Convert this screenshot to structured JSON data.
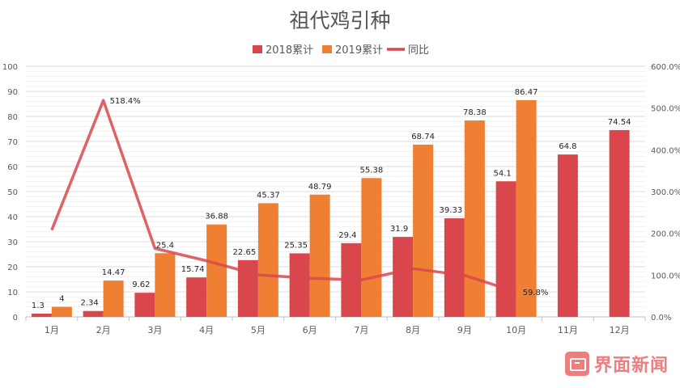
{
  "chart_data": {
    "type": "bar",
    "title": "祖代鸡引种",
    "categories": [
      "1月",
      "2月",
      "3月",
      "4月",
      "5月",
      "6月",
      "7月",
      "8月",
      "9月",
      "10月",
      "11月",
      "12月"
    ],
    "series": [
      {
        "name": "2018累计",
        "type": "bar",
        "color": "#d9474d",
        "values": [
          1.3,
          2.34,
          9.62,
          15.74,
          22.65,
          25.35,
          29.4,
          31.9,
          39.33,
          54.1,
          64.8,
          74.54
        ],
        "labels": [
          "1.3",
          "2.34",
          "9.62",
          "15.74",
          "22.65",
          "25.35",
          "29.4",
          "31.9",
          "39.33",
          "54.1",
          "64.8",
          "74.54"
        ]
      },
      {
        "name": "2019累计",
        "type": "bar",
        "color": "#ee7f33",
        "values": [
          4,
          14.47,
          25.4,
          36.88,
          45.37,
          48.79,
          55.38,
          68.74,
          78.38,
          86.47,
          null,
          null
        ],
        "labels": [
          "4",
          "14.47",
          "25.4",
          "36.88",
          "45.37",
          "48.79",
          "55.38",
          "68.74",
          "78.38",
          "86.47",
          "",
          ""
        ]
      },
      {
        "name": "同比",
        "type": "line",
        "axis": "right",
        "color": "#d9474d",
        "values": [
          207.7,
          518.4,
          164.0,
          134.3,
          100.3,
          92.5,
          88.4,
          115.5,
          99.3,
          59.8,
          null,
          null
        ],
        "labels": [
          "",
          "518.4%",
          "",
          "",
          "",
          "",
          "",
          "",
          "",
          "59.8%",
          "",
          ""
        ]
      }
    ],
    "left_axis": {
      "min": 0,
      "max": 100,
      "ticks": [
        0,
        10,
        20,
        30,
        40,
        50,
        60,
        70,
        80,
        90,
        100
      ]
    },
    "right_axis": {
      "min": 0,
      "max": 600,
      "ticks": [
        "0.0%",
        "100.0%",
        "200.0%",
        "300.0%",
        "400.0%",
        "500.0%",
        "600.0%"
      ]
    },
    "legend_position": "top-center",
    "grid": true
  },
  "watermark": {
    "text": "界面新闻"
  }
}
